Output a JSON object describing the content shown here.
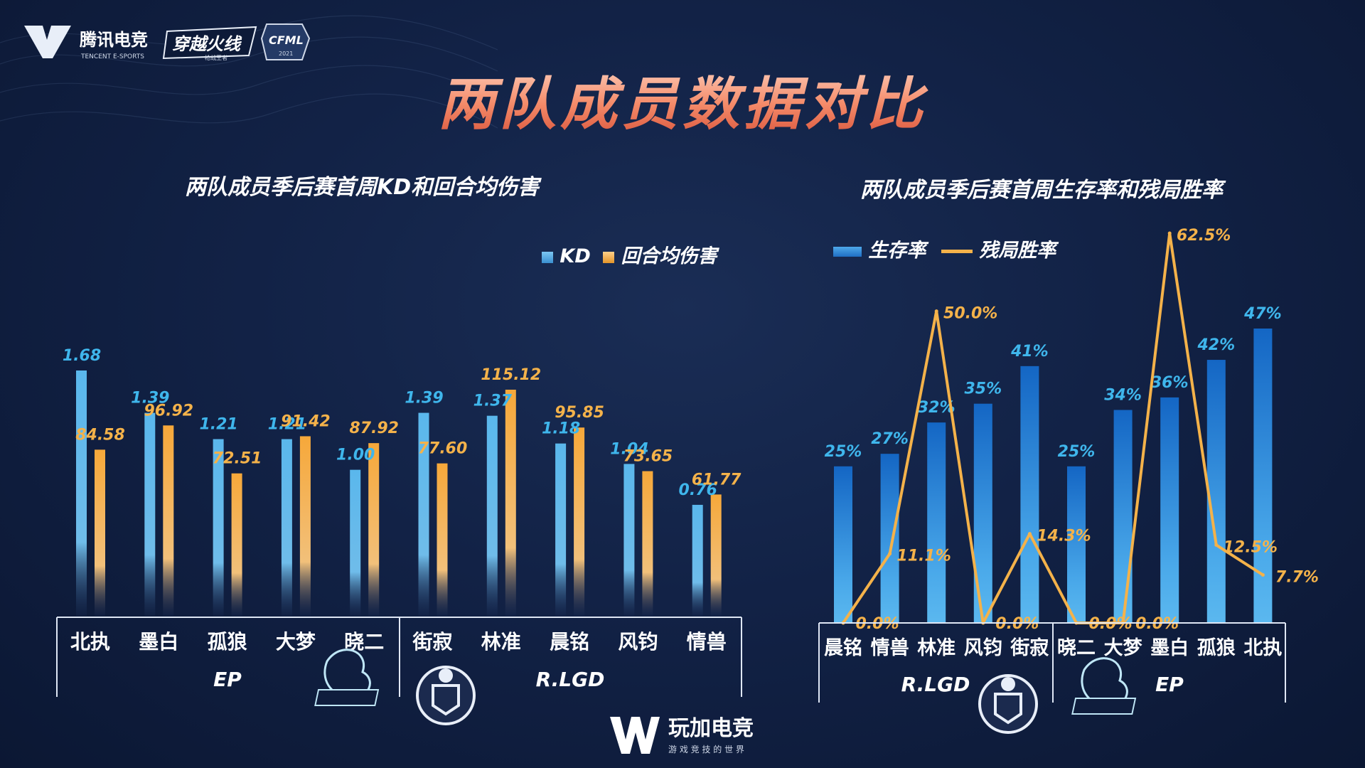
{
  "header": {
    "logo1_name": "腾讯电竞",
    "logo1_sub": "TENCENT E-SPORTS",
    "logo2_name": "穿越火线",
    "logo2_sub": "枪战王者",
    "logo3_name": "CFML",
    "logo3_sub": "2021",
    "title": "两队成员数据对比"
  },
  "left_chart": {
    "title": "两队成员季后赛首周KD和回合均伤害",
    "legend": [
      "KD",
      "回合均伤害"
    ],
    "team_labels": [
      "EP",
      "R.LGD"
    ],
    "colors": {
      "kd": "#5ab0e6",
      "damage": "#f4a73d",
      "label_kd": "#3fb6ec",
      "label_dmg": "#f4b24a"
    }
  },
  "right_chart": {
    "title": "两队成员季后赛首周生存率和残局胜率",
    "legend": [
      "生存率",
      "残局胜率"
    ],
    "team_labels": [
      "R.LGD",
      "EP"
    ],
    "colors": {
      "bar": "#1f7fd6",
      "line": "#f4b24a",
      "label_bar": "#3fb6ec",
      "label_line": "#f4b24a"
    }
  },
  "chart_data": [
    {
      "type": "bar",
      "title": "两队成员季后赛首周KD和回合均伤害",
      "categories": [
        "北执",
        "墨白",
        "孤狼",
        "大梦",
        "晓二",
        "街寂",
        "林准",
        "晨铭",
        "风钧",
        "情兽"
      ],
      "groups": [
        {
          "name": "EP",
          "categories": [
            "北执",
            "墨白",
            "孤狼",
            "大梦",
            "晓二"
          ]
        },
        {
          "name": "R.LGD",
          "categories": [
            "街寂",
            "林准",
            "晨铭",
            "风钧",
            "情兽"
          ]
        }
      ],
      "series": [
        {
          "name": "KD",
          "values": [
            1.68,
            1.39,
            1.21,
            1.21,
            1.0,
            1.39,
            1.37,
            1.18,
            1.04,
            0.76
          ],
          "labels": [
            "1.68",
            "1.39",
            "1.21",
            "1.21",
            "1.00",
            "1.39",
            "1.37",
            "1.18",
            "1.04",
            "0.76"
          ]
        },
        {
          "name": "回合均伤害",
          "values": [
            84.58,
            96.92,
            72.51,
            91.42,
            87.92,
            77.6,
            115.12,
            95.85,
            73.65,
            61.77
          ],
          "labels": [
            "84.58",
            "96.92",
            "72.51",
            "91.42",
            "87.92",
            "77.60",
            "115.12",
            "95.85",
            "73.65",
            "61.77"
          ]
        }
      ],
      "legend": "top-right",
      "grid": false
    },
    {
      "type": "bar+line",
      "title": "两队成员季后赛首周生存率和残局胜率",
      "categories": [
        "晨铭",
        "情兽",
        "林准",
        "风钧",
        "街寂",
        "晓二",
        "大梦",
        "墨白",
        "孤狼",
        "北执"
      ],
      "groups": [
        {
          "name": "R.LGD",
          "categories": [
            "晨铭",
            "情兽",
            "林准",
            "风钧",
            "街寂"
          ]
        },
        {
          "name": "EP",
          "categories": [
            "晓二",
            "大梦",
            "墨白",
            "孤狼",
            "北执"
          ]
        }
      ],
      "series": [
        {
          "name": "生存率",
          "type": "bar",
          "values": [
            25,
            27,
            32,
            35,
            41,
            25,
            34,
            36,
            42,
            47
          ],
          "labels": [
            "25%",
            "27%",
            "32%",
            "35%",
            "41%",
            "25%",
            "34%",
            "36%",
            "42%",
            "47%"
          ]
        },
        {
          "name": "残局胜率",
          "type": "line",
          "values": [
            0.0,
            11.1,
            50.0,
            0.0,
            14.3,
            0.0,
            0.0,
            62.5,
            12.5,
            7.7
          ],
          "labels": [
            "0.0%",
            "11.1%",
            "50.0%",
            "0.0%",
            "14.3%",
            "0.0%",
            "0.0%",
            "62.5%",
            "12.5%",
            "7.7%"
          ]
        }
      ],
      "legend": "top-left",
      "grid": false
    }
  ],
  "footer": {
    "brand": "玩加电竞",
    "slogan": "游 戏 竞 技 的 世 界"
  }
}
